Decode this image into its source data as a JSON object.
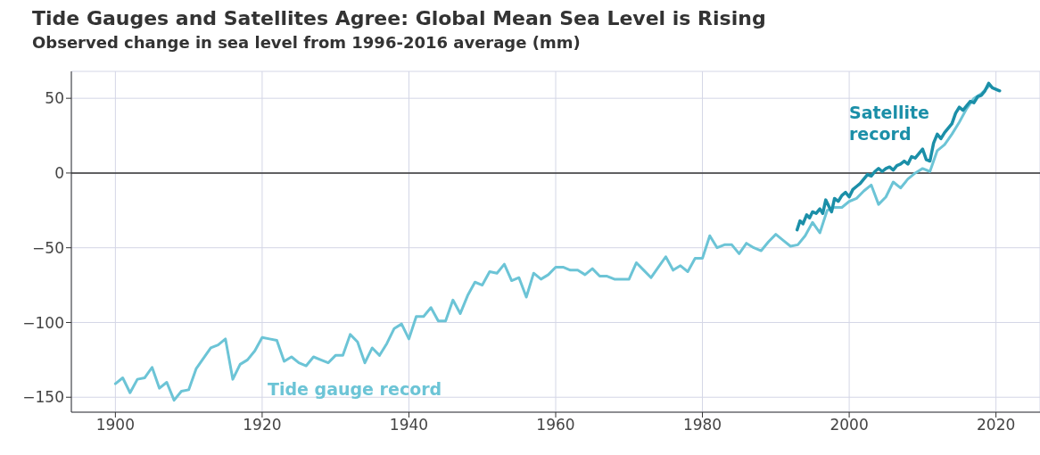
{
  "chart_data": {
    "type": "line",
    "title": "Tide Gauges and Satellites Agree: Global Mean Sea Level is Rising",
    "subtitle": "Observed change in sea level from 1996-2016 average (mm)",
    "xlim": [
      1894,
      2026
    ],
    "xticks": [
      1900,
      1920,
      1940,
      1960,
      1980,
      2000,
      2020
    ],
    "ylim": [
      -160,
      68
    ],
    "yticks": [
      -150,
      -100,
      -50,
      0,
      50
    ],
    "grid": true,
    "marker": "none",
    "line_style": "solid",
    "ref_lines": [
      {
        "axis": "y",
        "value": 0,
        "color": "#333333"
      }
    ],
    "annotations": [
      "Tide gauge record",
      "Satellite record"
    ],
    "series": [
      {
        "color": "#6cc4d6",
        "x": [
          1900,
          1901,
          1902,
          1903,
          1904,
          1905,
          1906,
          1907,
          1908,
          1909,
          1910,
          1911,
          1912,
          1913,
          1914,
          1915,
          1916,
          1917,
          1918,
          1919,
          1920,
          1921,
          1922,
          1923,
          1924,
          1925,
          1926,
          1927,
          1928,
          1929,
          1930,
          1931,
          1932,
          1933,
          1934,
          1935,
          1936,
          1937,
          1938,
          1939,
          1940,
          1941,
          1942,
          1943,
          1944,
          1945,
          1946,
          1947,
          1948,
          1949,
          1950,
          1951,
          1952,
          1953,
          1954,
          1955,
          1956,
          1957,
          1958,
          1959,
          1960,
          1961,
          1962,
          1963,
          1964,
          1965,
          1966,
          1967,
          1968,
          1969,
          1970,
          1971,
          1972,
          1973,
          1974,
          1975,
          1976,
          1977,
          1978,
          1979,
          1980,
          1981,
          1982,
          1983,
          1984,
          1985,
          1986,
          1987,
          1988,
          1989,
          1990,
          1991,
          1992,
          1993,
          1994,
          1995,
          1996,
          1997,
          1998,
          1999,
          2000,
          2001,
          2002,
          2003,
          2004,
          2005,
          2006,
          2007,
          2008,
          2009,
          2010,
          2011,
          2012,
          2013,
          2014,
          2015,
          2016,
          2017,
          2018,
          2019
        ],
        "values": [
          -141,
          -137,
          -147,
          -138,
          -137,
          -130,
          -144,
          -140,
          -152,
          -146,
          -145,
          -131,
          -124,
          -117,
          -115,
          -111,
          -138,
          -128,
          -125,
          -119,
          -110,
          -111,
          -112,
          -126,
          -123,
          -127,
          -129,
          -123,
          -125,
          -127,
          -122,
          -122,
          -108,
          -113,
          -127,
          -117,
          -122,
          -114,
          -104,
          -101,
          -111,
          -96,
          -96,
          -90,
          -99,
          -99,
          -85,
          -94,
          -82,
          -73,
          -75,
          -66,
          -67,
          -61,
          -72,
          -70,
          -83,
          -67,
          -71,
          -68,
          -63,
          -63,
          -65,
          -65,
          -68,
          -64,
          -69,
          -69,
          -71,
          -71,
          -71,
          -60,
          -65,
          -70,
          -63,
          -56,
          -65,
          -62,
          -66,
          -57,
          -57,
          -42,
          -50,
          -48,
          -48,
          -54,
          -47,
          -50,
          -52,
          -46,
          -41,
          -45,
          -49,
          -48,
          -42,
          -33,
          -40,
          -25,
          -23,
          -23,
          -19,
          -17,
          -12,
          -8,
          -21,
          -16,
          -6,
          -10,
          -4,
          0,
          3,
          1,
          15,
          19,
          26,
          34,
          43,
          50,
          53,
          58
        ]
      },
      {
        "color": "#1b8fa8",
        "x": [
          1992.9,
          1993.3,
          1993.7,
          1994.2,
          1994.6,
          1995,
          1995.5,
          1996,
          1996.4,
          1996.8,
          1997.2,
          1997.6,
          1998,
          1998.5,
          1999,
          1999.5,
          2000,
          2000.5,
          2001,
          2001.5,
          2002,
          2002.5,
          2003,
          2003.5,
          2004,
          2004.5,
          2005,
          2005.5,
          2006,
          2006.5,
          2007,
          2007.5,
          2008,
          2008.5,
          2009,
          2009.5,
          2010,
          2010.5,
          2011,
          2011.5,
          2012,
          2012.5,
          2013,
          2013.5,
          2014,
          2014.5,
          2015,
          2015.5,
          2016,
          2016.5,
          2017,
          2017.5,
          2018,
          2018.5,
          2019,
          2019.5,
          2020,
          2020.5
        ],
        "values": [
          -38,
          -32,
          -34,
          -28,
          -30,
          -26,
          -27,
          -24,
          -27,
          -18,
          -22,
          -26,
          -17,
          -19,
          -15,
          -13,
          -16,
          -11,
          -9,
          -7,
          -4,
          -1,
          -2,
          1,
          3,
          1,
          3,
          4,
          2,
          5,
          6,
          8,
          6,
          11,
          10,
          13,
          16,
          9,
          8,
          20,
          26,
          23,
          27,
          30,
          33,
          40,
          44,
          42,
          45,
          48,
          47,
          51,
          52,
          55,
          60,
          57,
          56,
          55
        ]
      }
    ]
  }
}
